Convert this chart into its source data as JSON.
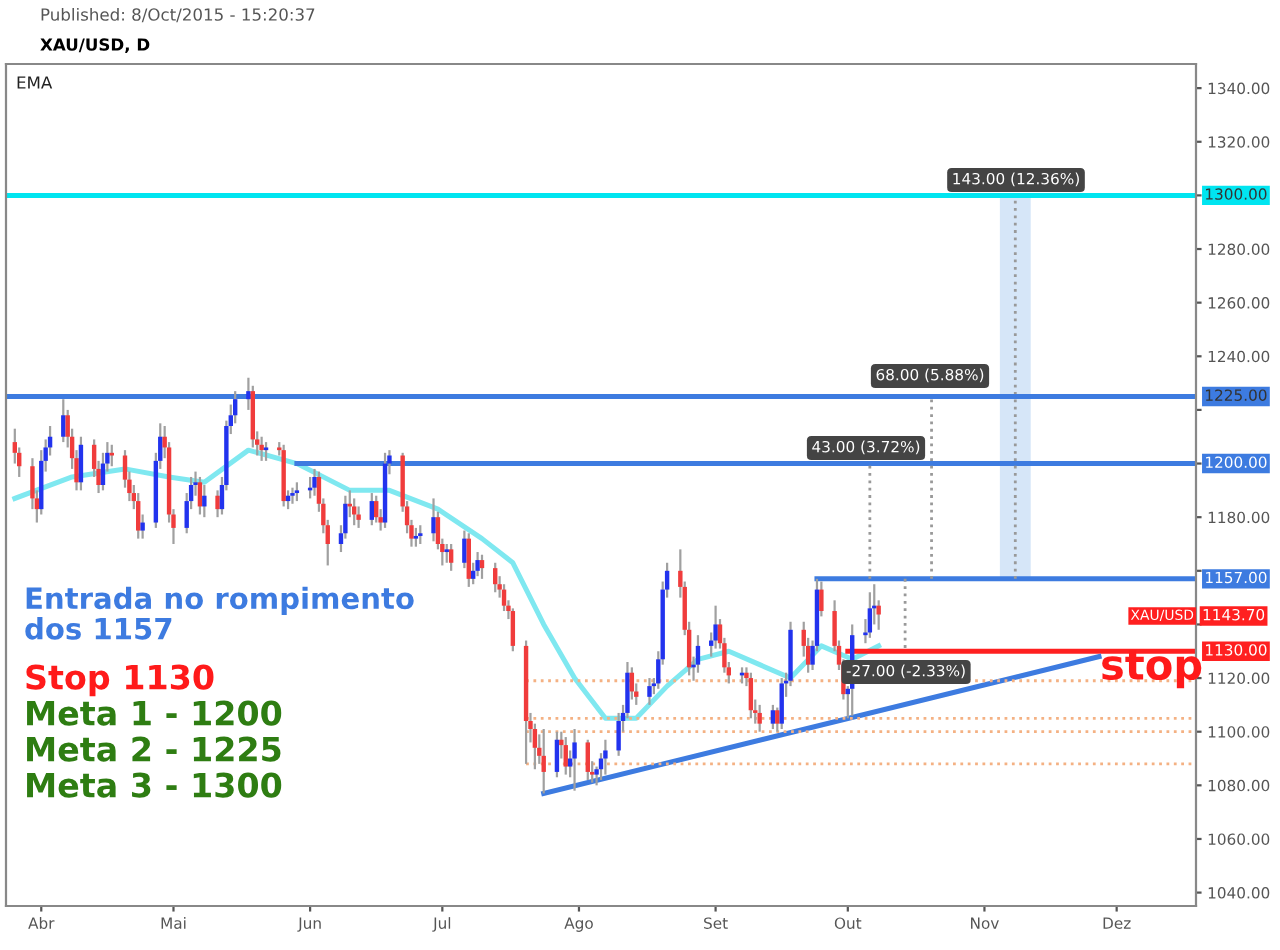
{
  "chart_data": {
    "type": "candlestick",
    "title": "XAU/USD, D",
    "x": [
      "2015-03-26",
      "2015-03-27",
      "2015-03-30",
      "2015-03-31",
      "2015-04-01",
      "2015-04-02",
      "2015-04-03",
      "2015-04-06",
      "2015-04-07",
      "2015-04-08",
      "2015-04-09",
      "2015-04-10",
      "2015-04-13",
      "2015-04-14",
      "2015-04-15",
      "2015-04-16",
      "2015-04-17",
      "2015-04-20",
      "2015-04-21",
      "2015-04-22",
      "2015-04-23",
      "2015-04-24",
      "2015-04-27",
      "2015-04-28",
      "2015-04-29",
      "2015-04-30",
      "2015-05-01",
      "2015-05-04",
      "2015-05-05",
      "2015-05-06",
      "2015-05-07",
      "2015-05-08",
      "2015-05-11",
      "2015-05-12",
      "2015-05-13",
      "2015-05-14",
      "2015-05-15",
      "2015-05-18",
      "2015-05-19",
      "2015-05-20",
      "2015-05-21",
      "2015-05-22",
      "2015-05-25",
      "2015-05-26",
      "2015-05-27",
      "2015-05-28",
      "2015-05-29",
      "2015-06-01",
      "2015-06-02",
      "2015-06-03",
      "2015-06-04",
      "2015-06-05",
      "2015-06-08",
      "2015-06-09",
      "2015-06-10",
      "2015-06-11",
      "2015-06-12",
      "2015-06-15",
      "2015-06-16",
      "2015-06-17",
      "2015-06-18",
      "2015-06-19",
      "2015-06-22",
      "2015-06-23",
      "2015-06-24",
      "2015-06-25",
      "2015-06-26",
      "2015-06-29",
      "2015-06-30",
      "2015-07-01",
      "2015-07-02",
      "2015-07-03",
      "2015-07-06",
      "2015-07-07",
      "2015-07-08",
      "2015-07-09",
      "2015-07-10",
      "2015-07-13",
      "2015-07-14",
      "2015-07-15",
      "2015-07-16",
      "2015-07-17",
      "2015-07-20",
      "2015-07-21",
      "2015-07-22",
      "2015-07-23",
      "2015-07-24",
      "2015-07-27",
      "2015-07-28",
      "2015-07-29",
      "2015-07-30",
      "2015-07-31",
      "2015-08-03",
      "2015-08-04",
      "2015-08-05",
      "2015-08-06",
      "2015-08-07",
      "2015-08-10",
      "2015-08-11",
      "2015-08-12",
      "2015-08-13",
      "2015-08-14",
      "2015-08-17",
      "2015-08-18",
      "2015-08-19",
      "2015-08-20",
      "2015-08-21",
      "2015-08-24",
      "2015-08-25",
      "2015-08-26",
      "2015-08-27",
      "2015-08-28",
      "2015-08-31",
      "2015-09-01",
      "2015-09-02",
      "2015-09-03",
      "2015-09-04",
      "2015-09-07",
      "2015-09-08",
      "2015-09-09",
      "2015-09-10",
      "2015-09-11",
      "2015-09-14",
      "2015-09-15",
      "2015-09-16",
      "2015-09-17",
      "2015-09-18",
      "2015-09-21",
      "2015-09-22",
      "2015-09-23",
      "2015-09-24",
      "2015-09-25",
      "2015-09-28",
      "2015-09-29",
      "2015-09-30",
      "2015-10-01",
      "2015-10-02",
      "2015-10-05",
      "2015-10-06",
      "2015-10-07",
      "2015-10-08"
    ],
    "ohlc": [
      [
        1208,
        1213,
        1200,
        1204
      ],
      [
        1204,
        1206,
        1195,
        1199
      ],
      [
        1199,
        1202,
        1183,
        1187
      ],
      [
        1187,
        1190,
        1178,
        1183
      ],
      [
        1183,
        1205,
        1181,
        1201
      ],
      [
        1201,
        1209,
        1197,
        1206
      ],
      [
        1206,
        1214,
        1203,
        1210
      ],
      [
        1210,
        1224,
        1208,
        1218
      ],
      [
        1218,
        1220,
        1206,
        1210
      ],
      [
        1210,
        1213,
        1198,
        1202
      ],
      [
        1202,
        1205,
        1190,
        1193
      ],
      [
        1193,
        1210,
        1190,
        1207
      ],
      [
        1207,
        1209,
        1195,
        1198
      ],
      [
        1198,
        1201,
        1189,
        1192
      ],
      [
        1192,
        1204,
        1190,
        1200
      ],
      [
        1200,
        1208,
        1197,
        1204
      ],
      [
        1204,
        1207,
        1199,
        1203
      ],
      [
        1203,
        1205,
        1191,
        1194
      ],
      [
        1194,
        1197,
        1186,
        1189
      ],
      [
        1189,
        1192,
        1183,
        1186
      ],
      [
        1186,
        1189,
        1172,
        1175
      ],
      [
        1175,
        1181,
        1172,
        1178
      ],
      [
        1178,
        1204,
        1176,
        1201
      ],
      [
        1201,
        1215,
        1198,
        1210
      ],
      [
        1210,
        1214,
        1202,
        1206
      ],
      [
        1206,
        1208,
        1178,
        1181
      ],
      [
        1181,
        1183,
        1170,
        1176
      ],
      [
        1176,
        1189,
        1174,
        1186
      ],
      [
        1186,
        1195,
        1183,
        1192
      ],
      [
        1192,
        1197,
        1188,
        1193
      ],
      [
        1193,
        1195,
        1181,
        1184
      ],
      [
        1184,
        1192,
        1180,
        1188
      ],
      [
        1188,
        1190,
        1180,
        1183
      ],
      [
        1183,
        1195,
        1181,
        1192
      ],
      [
        1192,
        1216,
        1190,
        1214
      ],
      [
        1214,
        1222,
        1211,
        1218
      ],
      [
        1218,
        1227,
        1215,
        1224
      ],
      [
        1224,
        1232,
        1220,
        1227
      ],
      [
        1227,
        1229,
        1206,
        1209
      ],
      [
        1209,
        1212,
        1203,
        1207
      ],
      [
        1207,
        1210,
        1201,
        1205
      ],
      [
        1205,
        1208,
        1201,
        1206
      ],
      [
        1206,
        1208,
        1203,
        1205
      ],
      [
        1205,
        1207,
        1184,
        1186
      ],
      [
        1186,
        1190,
        1183,
        1188
      ],
      [
        1188,
        1191,
        1185,
        1189
      ],
      [
        1189,
        1193,
        1186,
        1190
      ],
      [
        1190,
        1195,
        1187,
        1191
      ],
      [
        1191,
        1198,
        1188,
        1195
      ],
      [
        1195,
        1197,
        1182,
        1185
      ],
      [
        1185,
        1187,
        1174,
        1177
      ],
      [
        1177,
        1179,
        1162,
        1170
      ],
      [
        1170,
        1177,
        1167,
        1174
      ],
      [
        1174,
        1188,
        1172,
        1185
      ],
      [
        1185,
        1190,
        1180,
        1184
      ],
      [
        1184,
        1187,
        1177,
        1181
      ],
      [
        1181,
        1184,
        1176,
        1179
      ],
      [
        1179,
        1189,
        1177,
        1186
      ],
      [
        1186,
        1188,
        1178,
        1180
      ],
      [
        1180,
        1183,
        1175,
        1178
      ],
      [
        1178,
        1204,
        1176,
        1200
      ],
      [
        1200,
        1205,
        1196,
        1203
      ],
      [
        1203,
        1204,
        1182,
        1184
      ],
      [
        1184,
        1186,
        1174,
        1177
      ],
      [
        1177,
        1179,
        1169,
        1172
      ],
      [
        1172,
        1176,
        1169,
        1173
      ],
      [
        1173,
        1177,
        1170,
        1174
      ],
      [
        1174,
        1187,
        1171,
        1180
      ],
      [
        1180,
        1182,
        1168,
        1170
      ],
      [
        1170,
        1172,
        1162,
        1167
      ],
      [
        1167,
        1170,
        1163,
        1168
      ],
      [
        1168,
        1170,
        1160,
        1163
      ],
      [
        1163,
        1175,
        1161,
        1172
      ],
      [
        1172,
        1174,
        1154,
        1157
      ],
      [
        1157,
        1163,
        1155,
        1160
      ],
      [
        1160,
        1167,
        1158,
        1164
      ],
      [
        1164,
        1166,
        1157,
        1161
      ],
      [
        1161,
        1163,
        1152,
        1155
      ],
      [
        1155,
        1158,
        1150,
        1153
      ],
      [
        1153,
        1155,
        1145,
        1147
      ],
      [
        1147,
        1149,
        1142,
        1145
      ],
      [
        1145,
        1146,
        1130,
        1132
      ],
      [
        1132,
        1134,
        1088,
        1104
      ],
      [
        1104,
        1107,
        1096,
        1101
      ],
      [
        1101,
        1103,
        1086,
        1094
      ],
      [
        1094,
        1099,
        1088,
        1091
      ],
      [
        1091,
        1101,
        1077,
        1085
      ],
      [
        1085,
        1100,
        1083,
        1097
      ],
      [
        1097,
        1100,
        1090,
        1095
      ],
      [
        1095,
        1098,
        1084,
        1087
      ],
      [
        1087,
        1093,
        1083,
        1090
      ],
      [
        1090,
        1101,
        1078,
        1096
      ],
      [
        1096,
        1097,
        1082,
        1085
      ],
      [
        1085,
        1089,
        1081,
        1084
      ],
      [
        1084,
        1087,
        1080,
        1086
      ],
      [
        1086,
        1092,
        1082,
        1090
      ],
      [
        1090,
        1097,
        1084,
        1093
      ],
      [
        1093,
        1107,
        1091,
        1104
      ],
      [
        1104,
        1110,
        1100,
        1107
      ],
      [
        1107,
        1126,
        1105,
        1122
      ],
      [
        1122,
        1124,
        1112,
        1115
      ],
      [
        1115,
        1118,
        1110,
        1113
      ],
      [
        1113,
        1120,
        1110,
        1117
      ],
      [
        1117,
        1120,
        1114,
        1118
      ],
      [
        1118,
        1130,
        1116,
        1127
      ],
      [
        1127,
        1156,
        1125,
        1153
      ],
      [
        1153,
        1163,
        1150,
        1160
      ],
      [
        1160,
        1168,
        1150,
        1154
      ],
      [
        1154,
        1156,
        1136,
        1138
      ],
      [
        1138,
        1141,
        1121,
        1124
      ],
      [
        1124,
        1128,
        1119,
        1125
      ],
      [
        1125,
        1136,
        1122,
        1132
      ],
      [
        1132,
        1137,
        1128,
        1134
      ],
      [
        1134,
        1147,
        1131,
        1140
      ],
      [
        1140,
        1142,
        1131,
        1133
      ],
      [
        1133,
        1135,
        1122,
        1124
      ],
      [
        1124,
        1126,
        1118,
        1121
      ],
      [
        1121,
        1124,
        1118,
        1122
      ],
      [
        1122,
        1124,
        1117,
        1120
      ],
      [
        1120,
        1122,
        1105,
        1108
      ],
      [
        1108,
        1112,
        1103,
        1107
      ],
      [
        1107,
        1110,
        1100,
        1103
      ],
      [
        1103,
        1110,
        1101,
        1108
      ],
      [
        1108,
        1109,
        1100,
        1103
      ],
      [
        1103,
        1120,
        1101,
        1118
      ],
      [
        1118,
        1122,
        1113,
        1119
      ],
      [
        1119,
        1141,
        1117,
        1138
      ],
      [
        1138,
        1141,
        1128,
        1132
      ],
      [
        1132,
        1135,
        1122,
        1125
      ],
      [
        1125,
        1134,
        1123,
        1132
      ],
      [
        1132,
        1157,
        1130,
        1153
      ],
      [
        1153,
        1156,
        1143,
        1145
      ],
      [
        1145,
        1149,
        1130,
        1132
      ],
      [
        1132,
        1134,
        1123,
        1125
      ],
      [
        1125,
        1127,
        1112,
        1114
      ],
      [
        1114,
        1117,
        1105,
        1116
      ],
      [
        1116,
        1140,
        1106,
        1136
      ],
      [
        1136,
        1142,
        1133,
        1137
      ],
      [
        1137,
        1152,
        1135,
        1146
      ],
      [
        1146,
        1155,
        1140,
        1147
      ],
      [
        1147,
        1149,
        1138,
        1143.7
      ]
    ],
    "colors": [
      "#f03c3c",
      "#f03c3c",
      "#f03c3c",
      "#f03c3c",
      "#2233ee",
      "#2233ee",
      "#2233ee",
      "#2233ee",
      "#f03c3c",
      "#f03c3c",
      "#f03c3c",
      "#2233ee",
      "#f03c3c",
      "#f03c3c",
      "#2233ee",
      "#2233ee",
      "#f03c3c",
      "#f03c3c",
      "#f03c3c",
      "#f03c3c",
      "#f03c3c",
      "#2233ee",
      "#2233ee",
      "#2233ee",
      "#f03c3c",
      "#f03c3c",
      "#f03c3c",
      "#2233ee",
      "#2233ee",
      "#2233ee",
      "#f03c3c",
      "#2233ee",
      "#f03c3c",
      "#2233ee",
      "#2233ee",
      "#2233ee",
      "#2233ee",
      "#2233ee",
      "#f03c3c",
      "#f03c3c",
      "#f03c3c",
      "#2233ee",
      "#f03c3c",
      "#f03c3c",
      "#2233ee",
      "#2233ee",
      "#2233ee",
      "#2233ee",
      "#2233ee",
      "#f03c3c",
      "#f03c3c",
      "#f03c3c",
      "#2233ee",
      "#2233ee",
      "#f03c3c",
      "#f03c3c",
      "#f03c3c",
      "#2233ee",
      "#f03c3c",
      "#f03c3c",
      "#2233ee",
      "#2233ee",
      "#f03c3c",
      "#f03c3c",
      "#f03c3c",
      "#2233ee",
      "#2233ee",
      "#2233ee",
      "#f03c3c",
      "#f03c3c",
      "#2233ee",
      "#f03c3c",
      "#2233ee",
      "#f03c3c",
      "#2233ee",
      "#2233ee",
      "#f03c3c",
      "#f03c3c",
      "#f03c3c",
      "#f03c3c",
      "#f03c3c",
      "#f03c3c",
      "#f03c3c",
      "#f03c3c",
      "#f03c3c",
      "#f03c3c",
      "#f03c3c",
      "#2233ee",
      "#f03c3c",
      "#f03c3c",
      "#2233ee",
      "#2233ee",
      "#f03c3c",
      "#f03c3c",
      "#2233ee",
      "#2233ee",
      "#2233ee",
      "#2233ee",
      "#2233ee",
      "#2233ee",
      "#f03c3c",
      "#f03c3c",
      "#2233ee",
      "#2233ee",
      "#2233ee",
      "#2233ee",
      "#2233ee",
      "#f03c3c",
      "#f03c3c",
      "#f03c3c",
      "#2233ee",
      "#2233ee",
      "#2233ee",
      "#2233ee",
      "#f03c3c",
      "#f03c3c",
      "#f03c3c",
      "#2233ee",
      "#f03c3c",
      "#f03c3c",
      "#f03c3c",
      "#f03c3c",
      "#2233ee",
      "#f03c3c",
      "#2233ee",
      "#2233ee",
      "#2233ee",
      "#f03c3c",
      "#f03c3c",
      "#2233ee",
      "#2233ee",
      "#f03c3c",
      "#f03c3c",
      "#f03c3c",
      "#f03c3c",
      "#2233ee",
      "#2233ee",
      "#2233ee",
      "#2233ee",
      "#2233ee",
      "#f03c3c"
    ],
    "series": [
      {
        "type": "line",
        "color": "#7fe8f0",
        "x": [
          "2015-03-26",
          "2015-04-08",
          "2015-04-20",
          "2015-04-30",
          "2015-05-08",
          "2015-05-18",
          "2015-05-29",
          "2015-06-10",
          "2015-06-19",
          "2015-06-30",
          "2015-07-10",
          "2015-07-17",
          "2015-07-24",
          "2015-07-31",
          "2015-08-07",
          "2015-08-14",
          "2015-08-21",
          "2015-08-28",
          "2015-09-04",
          "2015-09-11",
          "2015-09-18",
          "2015-09-25",
          "2015-10-02",
          "2015-10-08"
        ],
        "values": [
          1187,
          1195,
          1198,
          1195,
          1193,
          1205,
          1200,
          1190,
          1190,
          1183,
          1172,
          1163,
          1140,
          1120,
          1105,
          1105,
          1117,
          1127,
          1130,
          1125,
          1120,
          1132,
          1127,
          1132
        ]
      },
      {
        "type": "line",
        "color": "#3d7be0",
        "x": [
          "2015-05-29",
          "2015-12-19"
        ],
        "values": [
          1200,
          1200
        ]
      },
      {
        "type": "line",
        "color": "#3d7be0",
        "x": [
          "2015-09-24",
          "2015-12-19"
        ],
        "values": [
          1157,
          1157
        ]
      },
      {
        "type": "line",
        "color": "#ff2020",
        "x": [
          "2015-10-01",
          "2015-12-19"
        ],
        "values": [
          1130,
          1130
        ]
      },
      {
        "type": "line",
        "color": "#3d7be0",
        "x": [
          "2015-07-24",
          "2015-11-27"
        ],
        "values": [
          1077,
          1128
        ]
      },
      {
        "type": "line",
        "color": "#f4b183",
        "line_style": "dotted",
        "x": [
          "2015-07-20",
          "2015-12-19"
        ],
        "values": [
          1119,
          1119
        ]
      },
      {
        "type": "line",
        "color": "#f4b183",
        "line_style": "dotted",
        "x": [
          "2015-07-20",
          "2015-12-19"
        ],
        "values": [
          1105,
          1105
        ]
      },
      {
        "type": "line",
        "color": "#f4b183",
        "line_style": "dotted",
        "x": [
          "2015-07-20",
          "2015-12-19"
        ],
        "values": [
          1100,
          1100
        ]
      },
      {
        "type": "line",
        "color": "#f4b183",
        "line_style": "dotted",
        "x": [
          "2015-07-20",
          "2015-12-19"
        ],
        "values": [
          1088,
          1088
        ]
      },
      {
        "type": "bar",
        "color": "#d6e6f8",
        "x": [
          "2015-11-08"
        ],
        "base": [
          1157
        ],
        "values": [
          143
        ]
      },
      {
        "type": "line",
        "color": "#999999",
        "line_style": "dotted",
        "x": [
          "2015-10-06",
          "2015-10-06"
        ],
        "values": [
          1157,
          1200
        ]
      },
      {
        "type": "line",
        "color": "#999999",
        "line_style": "dotted",
        "x": [
          "2015-10-20",
          "2015-10-20"
        ],
        "values": [
          1157,
          1225
        ]
      },
      {
        "type": "line",
        "color": "#999999",
        "line_style": "dotted",
        "x": [
          "2015-11-08",
          "2015-11-08"
        ],
        "values": [
          1157,
          1300
        ]
      },
      {
        "type": "line",
        "color": "#999999",
        "line_style": "dotted",
        "x": [
          "2015-10-14",
          "2015-10-14"
        ],
        "values": [
          1157,
          1130
        ]
      }
    ],
    "ref_lines": [
      {
        "axis": "y",
        "value": 1300,
        "label": "1300.00",
        "color": "#00e5f0"
      },
      {
        "axis": "y",
        "value": 1225,
        "label": "1225.00",
        "color": "#3d7be0"
      }
    ],
    "annotations": [
      "Published: 8/Oct/2015 - 15:20:37",
      "EMA",
      "Entrada no rompimento\ndos 1157",
      "Stop 1130",
      "Meta 1 - 1200",
      "Meta 2 - 1225",
      "Meta 3 - 1300",
      "stop",
      "143.00 (12.36%)",
      "68.00 (5.88%)",
      "43.00 (3.72%)",
      "-27.00 (-2.33%)",
      "1143.70",
      "XAU/USD",
      {
        "text": "1200.00",
        "x": "2015-12-19",
        "y": 1200
      },
      {
        "text": "1157.00",
        "x": "2015-12-19",
        "y": 1157
      },
      {
        "text": "1130.00",
        "x": "2015-12-19",
        "y": 1130
      }
    ],
    "xlim": [
      "2015-03-24",
      "2015-12-19"
    ],
    "xticks": [
      {
        "value": "2015-04-01",
        "label": "Abr"
      },
      {
        "value": "2015-05-01",
        "label": "Mai"
      },
      {
        "value": "2015-06-01",
        "label": "Jun"
      },
      {
        "value": "2015-07-01",
        "label": "Jul"
      },
      {
        "value": "2015-08-01",
        "label": "Ago"
      },
      {
        "value": "2015-09-01",
        "label": "Set"
      },
      {
        "value": "2015-10-01",
        "label": "Out"
      },
      {
        "value": "2015-11-01",
        "label": "Nov"
      },
      {
        "value": "2015-12-01",
        "label": "Dez"
      }
    ],
    "ylim": [
      1035,
      1349
    ],
    "yticks": [
      {
        "value": 1040,
        "label": "1040.00"
      },
      {
        "value": 1060,
        "label": "1060.00"
      },
      {
        "value": 1080,
        "label": "1080.00"
      },
      {
        "value": 1100,
        "label": "1100.00"
      },
      {
        "value": 1120,
        "label": "1120.00"
      },
      {
        "value": 1140,
        "label": null
      },
      {
        "value": 1160,
        "label": null
      },
      {
        "value": 1180,
        "label": "1180.00"
      },
      {
        "value": 1200,
        "label": null
      },
      {
        "value": 1220,
        "label": null
      },
      {
        "value": 1240,
        "label": "1240.00"
      },
      {
        "value": 1260,
        "label": "1260.00"
      },
      {
        "value": 1280,
        "label": "1280.00"
      },
      {
        "value": 1300,
        "label": null
      },
      {
        "value": 1320,
        "label": "1320.00"
      },
      {
        "value": 1340,
        "label": "1340.00"
      }
    ],
    "grid": false,
    "legend": false
  }
}
